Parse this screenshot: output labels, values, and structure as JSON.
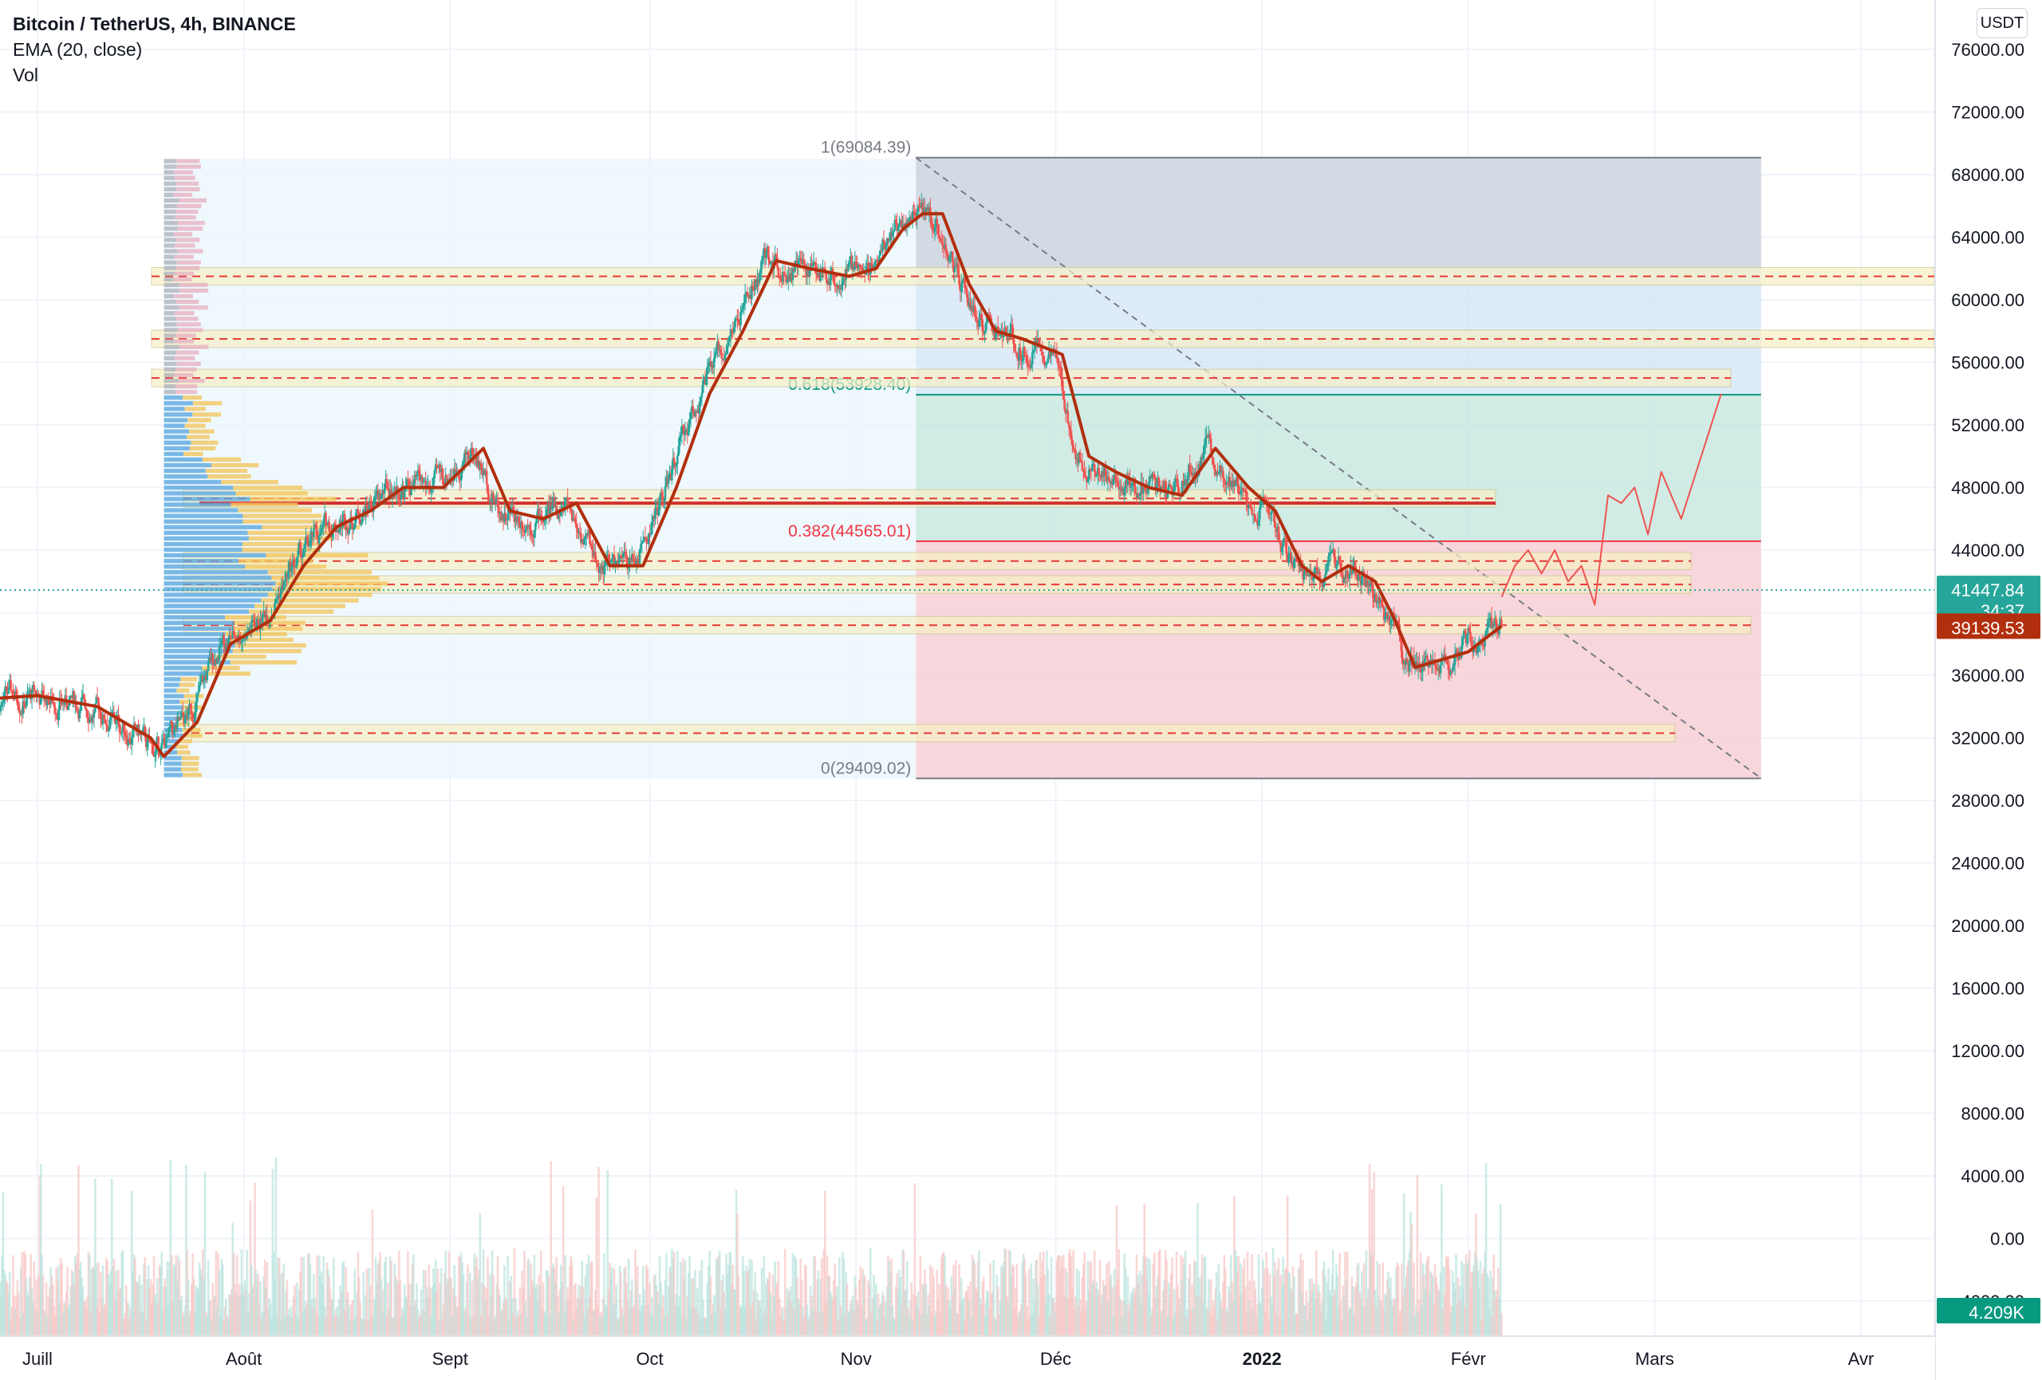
{
  "header": {
    "symbol": "Bitcoin / TetherUS, 4h, BINANCE",
    "indicator_ema": "EMA (20, close)",
    "indicator_vol": "Vol",
    "currency_button": "USDT"
  },
  "price_badges": {
    "last_price": "41447.84",
    "countdown": "34:37",
    "ema_value": "39139.53",
    "volume_value": "4.209K"
  },
  "colors": {
    "up": "#26a69a",
    "down": "#ef5350",
    "ema": "#b22f0e",
    "fib_top": "#787b86",
    "fib_0618": "#089981",
    "fib_0382": "#f23645",
    "last_price_badge": "#26a69a",
    "ema_badge": "#b22f0e",
    "volume_badge": "#089981"
  },
  "chart_data": {
    "type": "candlestick",
    "title": "Bitcoin / TetherUS, 4h, BINANCE",
    "y_axis": {
      "ticks": [
        76000,
        72000,
        68000,
        64000,
        60000,
        56000,
        52000,
        48000,
        44000,
        40000,
        36000,
        32000,
        28000,
        24000,
        20000,
        16000,
        12000,
        8000,
        4000,
        0,
        -4000
      ],
      "tick_labels": [
        "76000.00",
        "72000.00",
        "68000.00",
        "64000.00",
        "60000.00",
        "56000.00",
        "52000.00",
        "48000.00",
        "44000.00",
        "",
        "36000.00",
        "32000.00",
        "28000.00",
        "24000.00",
        "20000.00",
        "16000.00",
        "12000.00",
        "8000.00",
        "4000.00",
        "0.00",
        "-4000.00"
      ],
      "range": [
        -5000,
        78500
      ],
      "unit": "USDT"
    },
    "x_axis": {
      "labels": [
        "Juill",
        "Août",
        "Sept",
        "Oct",
        "Nov",
        "Déc",
        "2022",
        "Févr",
        "Mars",
        "Avr"
      ],
      "label_dates": [
        "2021-07-01",
        "2021-08-01",
        "2021-09-01",
        "2021-10-01",
        "2021-11-01",
        "2021-12-01",
        "2022-01-01",
        "2022-02-01",
        "2022-03-01",
        "2022-04-01"
      ],
      "range": [
        "2021-07-01",
        "2022-04-01"
      ]
    },
    "series": [
      {
        "name": "EMA (20, close)",
        "approx_points": [
          [
            "2021-06-24",
            34500
          ],
          [
            "2021-07-01",
            34700
          ],
          [
            "2021-07-10",
            34000
          ],
          [
            "2021-07-18",
            32000
          ],
          [
            "2021-07-20",
            30800
          ],
          [
            "2021-07-25",
            33000
          ],
          [
            "2021-07-30",
            38000
          ],
          [
            "2021-08-05",
            39500
          ],
          [
            "2021-08-10",
            43000
          ],
          [
            "2021-08-15",
            45500
          ],
          [
            "2021-08-20",
            46500
          ],
          [
            "2021-08-25",
            48000
          ],
          [
            "2021-08-31",
            48000
          ],
          [
            "2021-09-06",
            50500
          ],
          [
            "2021-09-10",
            46500
          ],
          [
            "2021-09-15",
            46000
          ],
          [
            "2021-09-20",
            47000
          ],
          [
            "2021-09-25",
            43000
          ],
          [
            "2021-09-30",
            43000
          ],
          [
            "2021-10-05",
            48000
          ],
          [
            "2021-10-10",
            54000
          ],
          [
            "2021-10-15",
            58000
          ],
          [
            "2021-10-20",
            62500
          ],
          [
            "2021-10-25",
            62000
          ],
          [
            "2021-10-31",
            61500
          ],
          [
            "2021-11-04",
            62000
          ],
          [
            "2021-11-08",
            64500
          ],
          [
            "2021-11-11",
            65500
          ],
          [
            "2021-11-14",
            65500
          ],
          [
            "2021-11-18",
            61000
          ],
          [
            "2021-11-22",
            58000
          ],
          [
            "2021-11-26",
            57500
          ],
          [
            "2021-11-29",
            57000
          ],
          [
            "2021-12-02",
            56500
          ],
          [
            "2021-12-06",
            50000
          ],
          [
            "2021-12-10",
            49000
          ],
          [
            "2021-12-15",
            48000
          ],
          [
            "2021-12-20",
            47500
          ],
          [
            "2021-12-25",
            50500
          ],
          [
            "2021-12-30",
            48000
          ],
          [
            "2022-01-03",
            46500
          ],
          [
            "2022-01-07",
            43000
          ],
          [
            "2022-01-10",
            42000
          ],
          [
            "2022-01-14",
            43000
          ],
          [
            "2022-01-18",
            42000
          ],
          [
            "2022-01-21",
            39500
          ],
          [
            "2022-01-24",
            36500
          ],
          [
            "2022-01-28",
            37000
          ],
          [
            "2022-02-01",
            37500
          ],
          [
            "2022-02-04",
            38500
          ],
          [
            "2022-02-06",
            39139.53
          ]
        ]
      },
      {
        "name": "Projection",
        "approx_points": [
          [
            "2022-02-06",
            41000
          ],
          [
            "2022-02-08",
            43000
          ],
          [
            "2022-02-10",
            44000
          ],
          [
            "2022-02-12",
            42500
          ],
          [
            "2022-02-14",
            44000
          ],
          [
            "2022-02-16",
            42000
          ],
          [
            "2022-02-18",
            43000
          ],
          [
            "2022-02-20",
            40500
          ],
          [
            "2022-02-22",
            47500
          ],
          [
            "2022-02-24",
            47000
          ],
          [
            "2022-02-26",
            48000
          ],
          [
            "2022-02-28",
            45000
          ],
          [
            "2022-03-02",
            49000
          ],
          [
            "2022-03-05",
            46000
          ],
          [
            "2022-03-08",
            50000
          ],
          [
            "2022-03-11",
            54000
          ]
        ]
      }
    ],
    "last_close": 41447.84,
    "fibonacci_retracement": {
      "levels": [
        {
          "label": "1(69084.39)",
          "value": 69084.39
        },
        {
          "label": "0.618(53928.40)",
          "value": 53928.4
        },
        {
          "label": "0.382(44565.01)",
          "value": 44565.01
        },
        {
          "label": "0(29409.02)",
          "value": 29409.02
        }
      ],
      "start_date": "2021-11-10",
      "end_date": "2022-03-17",
      "trend_from": [
        "2021-11-10",
        69084.39
      ],
      "trend_to": [
        "2022-03-17",
        29409.02
      ]
    },
    "horizontal_zones": [
      61500,
      57500,
      55000,
      47300,
      43300,
      41800,
      39200,
      32300
    ],
    "volume_profile": {
      "from_date": "2021-07-20",
      "to_date": "2021-11-10",
      "range": [
        29400,
        69000
      ]
    },
    "grid": true,
    "volume_panel": true
  }
}
